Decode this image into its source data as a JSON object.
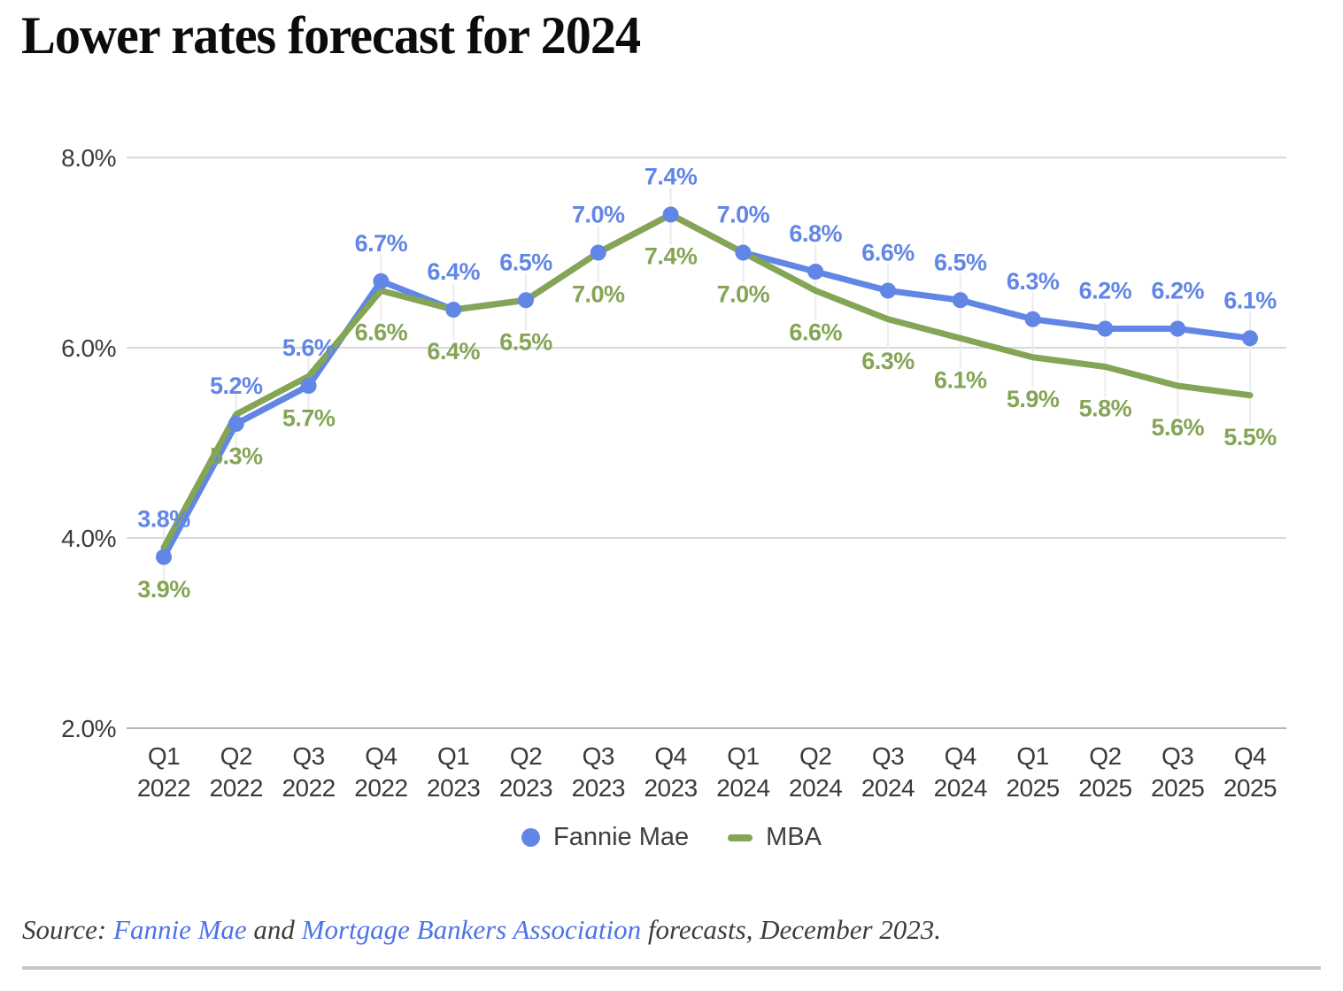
{
  "title": "Lower rates forecast for 2024",
  "chart_data": {
    "type": "line",
    "categories": [
      {
        "q": "Q1",
        "year": "2022"
      },
      {
        "q": "Q2",
        "year": "2022"
      },
      {
        "q": "Q3",
        "year": "2022"
      },
      {
        "q": "Q4",
        "year": "2022"
      },
      {
        "q": "Q1",
        "year": "2023"
      },
      {
        "q": "Q2",
        "year": "2023"
      },
      {
        "q": "Q3",
        "year": "2023"
      },
      {
        "q": "Q4",
        "year": "2023"
      },
      {
        "q": "Q1",
        "year": "2024"
      },
      {
        "q": "Q2",
        "year": "2024"
      },
      {
        "q": "Q3",
        "year": "2024"
      },
      {
        "q": "Q4",
        "year": "2024"
      },
      {
        "q": "Q1",
        "year": "2025"
      },
      {
        "q": "Q2",
        "year": "2025"
      },
      {
        "q": "Q3",
        "year": "2025"
      },
      {
        "q": "Q4",
        "year": "2025"
      }
    ],
    "series": [
      {
        "name": "Fannie Mae",
        "color": "#6286e6",
        "marker": "circle",
        "label_side": "above",
        "values": [
          3.8,
          5.2,
          5.6,
          6.7,
          6.4,
          6.5,
          7.0,
          7.4,
          7.0,
          6.8,
          6.6,
          6.5,
          6.3,
          6.2,
          6.2,
          6.1
        ],
        "labels": [
          "3.8%",
          "5.2%",
          "5.6%",
          "6.7%",
          "6.4%",
          "6.5%",
          "7.0%",
          "7.4%",
          "7.0%",
          "6.8%",
          "6.6%",
          "6.5%",
          "6.3%",
          "6.2%",
          "6.2%",
          "6.1%"
        ]
      },
      {
        "name": "MBA",
        "color": "#84a556",
        "marker": "none",
        "label_side": "below",
        "values": [
          3.9,
          5.3,
          5.7,
          6.6,
          6.4,
          6.5,
          7.0,
          7.4,
          7.0,
          6.6,
          6.3,
          6.1,
          5.9,
          5.8,
          5.6,
          5.5
        ],
        "labels": [
          "3.9%",
          "5.3%",
          "5.7%",
          "6.6%",
          "6.4%",
          "6.5%",
          "7.0%",
          "7.4%",
          "7.0%",
          "6.6%",
          "6.3%",
          "6.1%",
          "5.9%",
          "5.8%",
          "5.6%",
          "5.5%"
        ]
      }
    ],
    "ylim": [
      2,
      8
    ],
    "yticks": [
      {
        "value": 8,
        "label": "8.0%"
      },
      {
        "value": 6,
        "label": "6.0%"
      },
      {
        "value": 4,
        "label": "4.0%"
      },
      {
        "value": 2,
        "label": "2.0%"
      }
    ],
    "grid": "horizontal",
    "legend_position": "bottom",
    "colors": {
      "grid": "#d9d9d9",
      "axis": "#b3b3b3",
      "dropline": "#ececec",
      "tick_text": "#3a3a3a"
    }
  },
  "source": {
    "prefix": "Source: ",
    "link1": "Fannie Mae",
    "middle": " and ",
    "link2": "Mortgage Bankers Association",
    "suffix": " forecasts, December 2023.",
    "link_color": "#4d73e6",
    "text_color": "#3d3d3d"
  }
}
